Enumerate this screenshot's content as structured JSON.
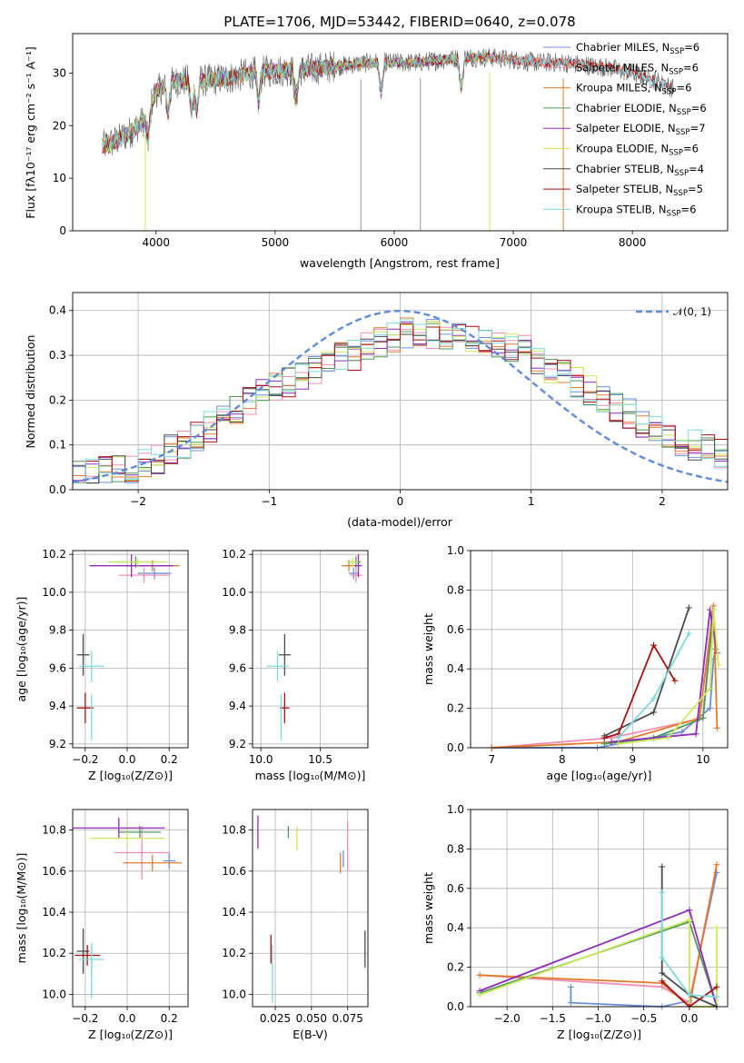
{
  "colors": {
    "Chabrier MILES": "#6c8fd8",
    "Salpeter MILES": "#ef8fb6",
    "Kroupa MILES": "#e07b2e",
    "Chabrier ELODIE": "#4f9a5a",
    "Salpeter ELODIE": "#8e2db5",
    "Kroupa ELODIE": "#cde85c",
    "Chabrier STELIB": "#4a4a4a",
    "Salpeter STELIB": "#a51010",
    "Kroupa STELIB": "#7fd8dc"
  },
  "chart_data": [
    {
      "id": "spectrum",
      "type": "line",
      "title": "PLATE=1706, MJD=53442, FIBERID=0640, z=0.078",
      "xlabel": "wavelength [Angstrom, rest frame]",
      "ylabel": "Flux [fλ10⁻¹⁷ erg cm⁻² s⁻¹ A⁻¹]",
      "xlim": [
        3300,
        8800
      ],
      "ylim": [
        0,
        37.5
      ],
      "xticks": [
        4000,
        5000,
        6000,
        7000,
        8000
      ],
      "yticks": [
        0,
        10,
        20,
        30
      ],
      "grid": false,
      "legend_position": "right",
      "continuum": {
        "x": [
          3550,
          3700,
          3800,
          3900,
          4000,
          4100,
          4200,
          4400,
          4600,
          4800,
          5000,
          5200,
          5400,
          5600,
          5800,
          6000,
          6200,
          6400,
          6600,
          6800,
          7000,
          7200,
          7400,
          7600,
          7800,
          8000,
          8200,
          8350
        ],
        "y": [
          16,
          17.5,
          19,
          21,
          26.5,
          28,
          28.5,
          28.5,
          29,
          30,
          30.5,
          30.5,
          31,
          31.5,
          32,
          32,
          32,
          32.5,
          33,
          33,
          32.5,
          32,
          32,
          31.5,
          31,
          30,
          28.5,
          27
        ]
      },
      "features": [
        {
          "x": 3933,
          "y": 22
        },
        {
          "x": 4101,
          "y": 24.5
        },
        {
          "x": 4300,
          "y": 25
        },
        {
          "x": 4340,
          "y": 25.5
        },
        {
          "x": 4861,
          "y": 26.5
        },
        {
          "x": 5175,
          "y": 27.5
        },
        {
          "x": 5890,
          "y": 29.5
        },
        {
          "x": 6563,
          "y": 30.5
        }
      ],
      "series": [
        {
          "name": "Chabrier MILES, N_SSP=6",
          "max": 8000
        },
        {
          "name": "Salpeter MILES, N_SSP=6",
          "max": 8000
        },
        {
          "name": "Kroupa MILES, N_SSP=6",
          "max": 8000
        },
        {
          "name": "Chabrier ELODIE, N_SSP=6",
          "max": 6800
        },
        {
          "name": "Salpeter ELODIE, N_SSP=7",
          "max": 6800
        },
        {
          "name": "Kroupa ELODIE, N_SSP=6",
          "max": 6800
        },
        {
          "name": "Chabrier STELIB, N_SSP=4",
          "max": 8350
        },
        {
          "name": "Salpeter STELIB, N_SSP=5",
          "max": 8350
        },
        {
          "name": "Kroupa STELIB, N_SSP=6",
          "max": 8350
        }
      ],
      "drops": [
        {
          "x": 3910,
          "color": "#cde85c"
        },
        {
          "x": 5720,
          "color": "#9a9a9a"
        },
        {
          "x": 6220,
          "color": "#9a9a9a"
        },
        {
          "x": 6800,
          "color": "#cde85c"
        },
        {
          "x": 7420,
          "color": "#e07b2e"
        }
      ]
    },
    {
      "id": "histogram",
      "type": "bar",
      "xlabel": "(data-model)/error",
      "ylabel": "Normed distribution",
      "xlim": [
        -2.5,
        2.5
      ],
      "ylim": [
        0,
        0.44
      ],
      "xticks": [
        -2,
        -1,
        0,
        1,
        2
      ],
      "yticks": [
        0.0,
        0.1,
        0.2,
        0.3,
        0.4
      ],
      "grid": true,
      "legend_position": "top-right",
      "gauss": {
        "label": "𝒩(0, 1)",
        "mean": 0,
        "sigma": 1
      },
      "bin_centers": [
        -2.45,
        -2.35,
        -2.25,
        -2.15,
        -2.05,
        -1.95,
        -1.85,
        -1.75,
        -1.65,
        -1.55,
        -1.45,
        -1.35,
        -1.25,
        -1.15,
        -1.05,
        -0.95,
        -0.85,
        -0.75,
        -0.65,
        -0.55,
        -0.45,
        -0.35,
        -0.25,
        -0.15,
        -0.05,
        0.05,
        0.15,
        0.25,
        0.35,
        0.45,
        0.55,
        0.65,
        0.75,
        0.85,
        0.95,
        1.05,
        1.15,
        1.25,
        1.35,
        1.45,
        1.55,
        1.65,
        1.75,
        1.85,
        1.95,
        2.05,
        2.15,
        2.25,
        2.35,
        2.45
      ],
      "base": [
        0.03,
        0.035,
        0.04,
        0.045,
        0.05,
        0.06,
        0.07,
        0.09,
        0.1,
        0.12,
        0.14,
        0.16,
        0.18,
        0.2,
        0.22,
        0.23,
        0.24,
        0.25,
        0.27,
        0.28,
        0.3,
        0.3,
        0.32,
        0.33,
        0.34,
        0.35,
        0.35,
        0.35,
        0.34,
        0.34,
        0.34,
        0.33,
        0.33,
        0.32,
        0.31,
        0.29,
        0.27,
        0.26,
        0.24,
        0.22,
        0.2,
        0.18,
        0.17,
        0.15,
        0.14,
        0.12,
        0.11,
        0.1,
        0.09,
        0.08
      ]
    },
    {
      "id": "age-vs-Z",
      "type": "scatter",
      "xlabel": "Z [log₁₀(Z/Z⊙)]",
      "ylabel": "age  [log₁₀(age/yr)]",
      "xlim": [
        -0.26,
        0.29
      ],
      "ylim": [
        9.18,
        10.22
      ],
      "xticks": [
        -0.2,
        0.0,
        0.2
      ],
      "yticks": [
        9.2,
        9.4,
        9.6,
        9.8,
        10.0,
        10.2
      ],
      "grid": true,
      "points": [
        {
          "s": "Chabrier MILES",
          "x": 0.13,
          "y": 10.1,
          "ex": 0.08,
          "ey": 0.03
        },
        {
          "s": "Salpeter MILES",
          "x": 0.08,
          "y": 10.09,
          "ex": 0.12,
          "ey": 0.04
        },
        {
          "s": "Kroupa MILES",
          "x": 0.12,
          "y": 10.14,
          "ex": 0.13,
          "ey": 0.03
        },
        {
          "s": "Chabrier ELODIE",
          "x": 0.04,
          "y": 10.16,
          "ex": 0.1,
          "ey": 0.03
        },
        {
          "s": "Salpeter ELODIE",
          "x": 0.02,
          "y": 10.14,
          "ex": 0.2,
          "ey": 0.06
        },
        {
          "s": "Kroupa ELODIE",
          "x": 0.05,
          "y": 10.16,
          "ex": 0.14,
          "ey": 0.02
        },
        {
          "s": "Chabrier STELIB",
          "x": -0.21,
          "y": 9.67,
          "ex": 0.03,
          "ey": 0.11
        },
        {
          "s": "Salpeter STELIB",
          "x": -0.2,
          "y": 9.39,
          "ex": 0.04,
          "ey": 0.08
        },
        {
          "s": "Kroupa STELIB",
          "x": -0.17,
          "y": 9.61,
          "ex": 0.06,
          "ey": 0.08
        },
        {
          "s": "Kroupa STELIB",
          "x": -0.17,
          "y": 9.34,
          "ex": 0.005,
          "ey": 0.12
        }
      ]
    },
    {
      "id": "age-vs-mass",
      "type": "scatter",
      "xlabel": "mass [log₁₀(M/M⊙)]",
      "ylabel": "",
      "xlim": [
        9.93,
        10.9
      ],
      "ylim": [
        9.18,
        10.22
      ],
      "xticks": [
        10.0,
        10.5
      ],
      "yticks": [
        9.2,
        9.4,
        9.6,
        9.8,
        10.0,
        10.2
      ],
      "grid": true,
      "points": [
        {
          "s": "Chabrier MILES",
          "x": 10.78,
          "y": 10.1,
          "ex": 0.04,
          "ey": 0.03
        },
        {
          "s": "Salpeter MILES",
          "x": 10.8,
          "y": 10.09,
          "ex": 0.05,
          "ey": 0.04
        },
        {
          "s": "Kroupa MILES",
          "x": 10.74,
          "y": 10.14,
          "ex": 0.06,
          "ey": 0.03
        },
        {
          "s": "Chabrier ELODIE",
          "x": 10.8,
          "y": 10.16,
          "ex": 0.04,
          "ey": 0.03
        },
        {
          "s": "Salpeter ELODIE",
          "x": 10.82,
          "y": 10.14,
          "ex": 0.03,
          "ey": 0.06
        },
        {
          "s": "Kroupa ELODIE",
          "x": 10.77,
          "y": 10.16,
          "ex": 0.05,
          "ey": 0.02
        },
        {
          "s": "Chabrier STELIB",
          "x": 10.2,
          "y": 9.67,
          "ex": 0.05,
          "ey": 0.11
        },
        {
          "s": "Salpeter STELIB",
          "x": 10.2,
          "y": 9.39,
          "ex": 0.04,
          "ey": 0.08
        },
        {
          "s": "Kroupa STELIB",
          "x": 10.14,
          "y": 9.61,
          "ex": 0.09,
          "ey": 0.08
        },
        {
          "s": "Kroupa STELIB",
          "x": 10.17,
          "y": 9.34,
          "ex": 0.005,
          "ey": 0.12
        }
      ]
    },
    {
      "id": "mass-weight-vs-age",
      "type": "line",
      "xlabel": "age  [log₁₀(age/yr)]",
      "ylabel": "mass weight",
      "xlim": [
        6.7,
        10.35
      ],
      "ylim": [
        0,
        1.0
      ],
      "xticks": [
        7,
        8,
        9,
        10
      ],
      "yticks": [
        0.0,
        0.2,
        0.4,
        0.6,
        0.8,
        1.0
      ],
      "grid": true,
      "series": [
        {
          "s": "Chabrier MILES",
          "x": [
            7.0,
            8.5,
            9.7,
            10.1,
            10.15,
            10.18
          ],
          "y": [
            0.0,
            0.0,
            0.08,
            0.2,
            0.45,
            0.5
          ]
        },
        {
          "s": "Salpeter MILES",
          "x": [
            7.0,
            8.7,
            10.0,
            10.13,
            10.17
          ],
          "y": [
            0.0,
            0.05,
            0.15,
            0.7,
            0.6
          ]
        },
        {
          "s": "Kroupa MILES",
          "x": [
            7.0,
            8.8,
            9.95,
            10.15,
            10.2
          ],
          "y": [
            0.0,
            0.03,
            0.15,
            0.72,
            0.1
          ]
        },
        {
          "s": "Chabrier ELODIE",
          "x": [
            8.6,
            9.3,
            10.0,
            10.15
          ],
          "y": [
            0.02,
            0.05,
            0.15,
            0.7
          ]
        },
        {
          "s": "Salpeter ELODIE",
          "x": [
            8.7,
            9.9,
            10.1,
            10.2
          ],
          "y": [
            0.03,
            0.07,
            0.7,
            0.48
          ]
        },
        {
          "s": "Kroupa ELODIE",
          "x": [
            8.8,
            9.5,
            10.1,
            10.15,
            10.22
          ],
          "y": [
            0.02,
            0.05,
            0.3,
            0.7,
            0.42
          ]
        },
        {
          "s": "Chabrier STELIB",
          "x": [
            8.6,
            9.3,
            9.8
          ],
          "y": [
            0.06,
            0.18,
            0.71
          ]
        },
        {
          "s": "Salpeter STELIB",
          "x": [
            8.6,
            8.8,
            9.3,
            9.6
          ],
          "y": [
            0.05,
            0.07,
            0.52,
            0.34
          ]
        },
        {
          "s": "Kroupa STELIB",
          "x": [
            8.8,
            9.3,
            9.8
          ],
          "y": [
            0.05,
            0.25,
            0.58
          ]
        }
      ]
    },
    {
      "id": "mass-vs-Z",
      "type": "scatter",
      "xlabel": "Z [log₁₀(Z/Z⊙)]",
      "ylabel": "mass [log₁₀(M/M⊙)]",
      "xlim": [
        -0.26,
        0.29
      ],
      "ylim": [
        9.94,
        10.9
      ],
      "xticks": [
        -0.2,
        0.0,
        0.2
      ],
      "yticks": [
        10.0,
        10.2,
        10.4,
        10.6,
        10.8
      ],
      "grid": true,
      "points": [
        {
          "s": "Chabrier MILES",
          "x": 0.2,
          "y": 10.65,
          "ex": 0.03,
          "ey": 0.04
        },
        {
          "s": "Salpeter MILES",
          "x": 0.07,
          "y": 10.69,
          "ex": 0.13,
          "ey": 0.13
        },
        {
          "s": "Kroupa MILES",
          "x": 0.12,
          "y": 10.64,
          "ex": 0.14,
          "ey": 0.04
        },
        {
          "s": "Chabrier ELODIE",
          "x": 0.06,
          "y": 10.79,
          "ex": 0.1,
          "ey": 0.03
        },
        {
          "s": "Salpeter ELODIE",
          "x": -0.04,
          "y": 10.81,
          "ex": 0.22,
          "ey": 0.05
        },
        {
          "s": "Kroupa ELODIE",
          "x": 0.0,
          "y": 10.76,
          "ex": 0.18,
          "ey": 0.03
        },
        {
          "s": "Chabrier STELIB",
          "x": -0.21,
          "y": 10.21,
          "ex": 0.03,
          "ey": 0.11
        },
        {
          "s": "Salpeter STELIB",
          "x": -0.19,
          "y": 10.19,
          "ex": 0.06,
          "ey": 0.05
        },
        {
          "s": "Kroupa STELIB",
          "x": -0.17,
          "y": 10.17,
          "ex": 0.06,
          "ey": 0.08
        },
        {
          "s": "Kroupa STELIB",
          "x": -0.17,
          "y": 10.1,
          "ex": 0.005,
          "ey": 0.12
        }
      ]
    },
    {
      "id": "mass-vs-EBV",
      "type": "scatter",
      "xlabel": "E(B-V)",
      "ylabel": "",
      "xlim": [
        0.0093,
        0.089
      ],
      "ylim": [
        9.94,
        10.9
      ],
      "xticks": [
        0.025,
        0.05,
        0.075
      ],
      "xticklabels": [
        "0.025",
        "0.050",
        "0.075"
      ],
      "yticks": [
        10.0,
        10.2,
        10.4,
        10.6,
        10.8
      ],
      "grid": true,
      "points": [
        {
          "s": "Chabrier MILES",
          "x": 0.072,
          "y": 10.66,
          "ex": 0.0,
          "ey": 0.04
        },
        {
          "s": "Salpeter MILES",
          "x": 0.075,
          "y": 10.72,
          "ex": 0.0,
          "ey": 0.12
        },
        {
          "s": "Kroupa MILES",
          "x": 0.07,
          "y": 10.64,
          "ex": 0.0,
          "ey": 0.05
        },
        {
          "s": "Chabrier ELODIE",
          "x": 0.034,
          "y": 10.79,
          "ex": 0.0,
          "ey": 0.03
        },
        {
          "s": "Salpeter ELODIE",
          "x": 0.013,
          "y": 10.79,
          "ex": 0.0,
          "ey": 0.08
        },
        {
          "s": "Kroupa ELODIE",
          "x": 0.04,
          "y": 10.76,
          "ex": 0.0,
          "ey": 0.06
        },
        {
          "s": "Chabrier STELIB",
          "x": 0.087,
          "y": 10.22,
          "ex": 0.0,
          "ey": 0.09
        },
        {
          "s": "Salpeter STELIB",
          "x": 0.022,
          "y": 10.22,
          "ex": 0.0,
          "ey": 0.07
        },
        {
          "s": "Kroupa STELIB",
          "x": 0.023,
          "y": 10.1,
          "ex": 0.0,
          "ey": 0.14
        }
      ]
    },
    {
      "id": "mass-weight-vs-Z",
      "type": "line",
      "xlabel": "Z [log₁₀(Z/Z⊙)]",
      "ylabel": "mass weight",
      "xlim": [
        -2.4,
        0.42
      ],
      "ylim": [
        0,
        1.0
      ],
      "xticks": [
        -2.0,
        -1.5,
        -1.0,
        -0.5,
        0.0
      ],
      "yticks": [
        0.0,
        0.2,
        0.4,
        0.6,
        0.8,
        1.0
      ],
      "grid": true,
      "series": [
        {
          "s": "Chabrier MILES",
          "x": [
            -1.3,
            -1.3,
            -0.3,
            0.0,
            0.3
          ],
          "y": [
            0.1,
            0.02,
            0.0,
            0.03,
            0.68
          ]
        },
        {
          "s": "Salpeter MILES",
          "x": [
            -2.3,
            -0.3,
            0.0,
            0.3
          ],
          "y": [
            0.16,
            0.1,
            0.02,
            0.72
          ]
        },
        {
          "s": "Kroupa MILES",
          "x": [
            -2.3,
            -0.3,
            0.0,
            0.3
          ],
          "y": [
            0.16,
            0.12,
            0.0,
            0.72
          ]
        },
        {
          "s": "Chabrier ELODIE",
          "x": [
            -2.3,
            0.0,
            0.3
          ],
          "y": [
            0.07,
            0.43,
            0.0
          ]
        },
        {
          "s": "Salpeter ELODIE",
          "x": [
            -2.3,
            0.0,
            0.3
          ],
          "y": [
            0.08,
            0.49,
            0.0
          ]
        },
        {
          "s": "Kroupa ELODIE",
          "x": [
            -2.3,
            0.0,
            0.0,
            0.3,
            0.3
          ],
          "y": [
            0.06,
            0.44,
            0.0,
            0.0,
            0.4
          ]
        },
        {
          "s": "Chabrier STELIB",
          "x": [
            -0.3,
            -0.3,
            0.0,
            0.3
          ],
          "y": [
            0.71,
            0.17,
            0.06,
            0.0
          ]
        },
        {
          "s": "Salpeter STELIB",
          "x": [
            -0.3,
            0.0,
            0.3
          ],
          "y": [
            0.13,
            0.0,
            0.1
          ]
        },
        {
          "s": "Kroupa STELIB",
          "x": [
            -0.3,
            -0.3,
            0.0,
            0.3
          ],
          "y": [
            0.58,
            0.25,
            0.06,
            0.05
          ]
        }
      ]
    }
  ]
}
